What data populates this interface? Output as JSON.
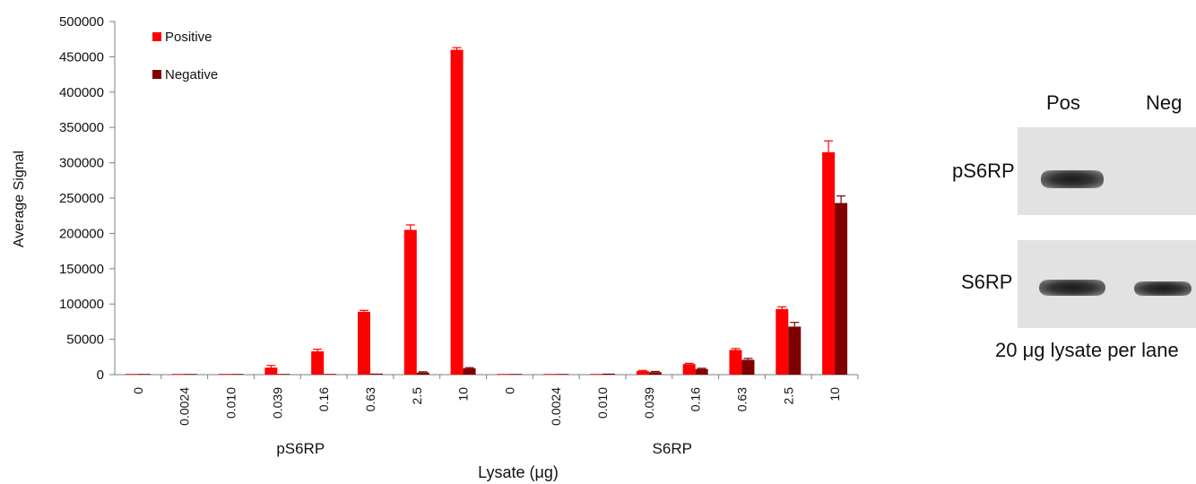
{
  "chart_data": {
    "type": "bar",
    "ylabel": "Average Signal",
    "xlabel": "Lysate (μg)",
    "ylim": [
      0,
      500000
    ],
    "yticks": [
      0,
      50000,
      100000,
      150000,
      200000,
      250000,
      300000,
      350000,
      400000,
      450000,
      500000
    ],
    "error_bars": true,
    "legend_position": "top-left",
    "groups": [
      {
        "label": "pS6RP",
        "categories": [
          "0",
          "0.0024",
          "0.010",
          "0.039",
          "0.16",
          "0.63",
          "2.5",
          "10"
        ]
      },
      {
        "label": "S6RP",
        "categories": [
          "0",
          "0.0024",
          "0.010",
          "0.039",
          "0.16",
          "0.63",
          "2.5",
          "10"
        ]
      }
    ],
    "series": [
      {
        "name": "Positive",
        "color": "#ff0000",
        "values": [
          500,
          500,
          1000,
          10000,
          33000,
          89000,
          205000,
          460000,
          500,
          500,
          1000,
          5000,
          15000,
          35000,
          93000,
          315000
        ],
        "errors": [
          0,
          0,
          0,
          3000,
          3000,
          2000,
          7000,
          3000,
          0,
          0,
          0,
          1000,
          1000,
          2000,
          3000,
          16000
        ]
      },
      {
        "name": "Negative",
        "color": "#7f0000",
        "values": [
          500,
          500,
          500,
          500,
          1000,
          1500,
          3000,
          9000,
          500,
          500,
          1500,
          3500,
          8000,
          21000,
          68000,
          243000
        ],
        "errors": [
          0,
          0,
          0,
          0,
          0,
          0,
          1000,
          1000,
          0,
          0,
          0,
          1000,
          1000,
          2000,
          6000,
          10000
        ]
      }
    ]
  },
  "blot": {
    "col_pos": "Pos",
    "col_neg": "Neg",
    "row_top": "pS6RP",
    "row_bottom": "S6RP",
    "caption": "20 μg lysate per lane"
  }
}
